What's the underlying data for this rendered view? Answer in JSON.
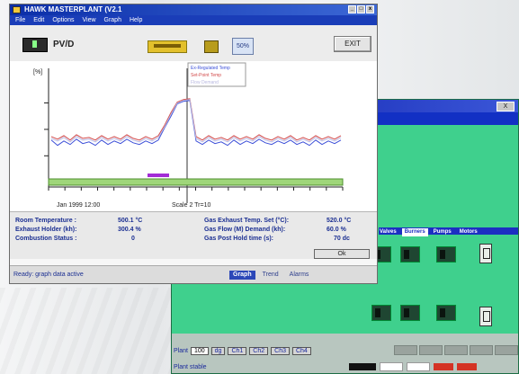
{
  "main_window": {
    "title": "HAWK MASTERPLANT (V2.1",
    "title_buttons": [
      "_",
      "□",
      "x"
    ],
    "menu": [
      "File",
      "Edit",
      "Options",
      "View",
      "Graph",
      "Help"
    ],
    "toolbar": {
      "label": "PV/D",
      "zoom_label": "50%",
      "exit_label": "EXIT"
    },
    "chart_footer": {
      "left": "Jan 1999 12:00",
      "mid": "Scale 2 Tr=10"
    },
    "info": {
      "left": [
        {
          "label": "Room Temperature  :",
          "value": "500.1 °C"
        },
        {
          "label": "Exhaust Holder (kh):",
          "value": "300.4 %"
        },
        {
          "label": "Combustion Status   :",
          "value": "0"
        }
      ],
      "right": [
        {
          "label": "Gas Exhaust Temp. Set (°C):",
          "value": "520.0 °C"
        },
        {
          "label": "Gas Flow (M) Demand  (kh):",
          "value": "60.0 %"
        },
        {
          "label": "Gas Post Hold time   (s):",
          "value": "70 dc"
        }
      ],
      "button_label": "Ok"
    },
    "status_text": "Ready: graph data active",
    "bottom_tabs": [
      {
        "label": "Graph",
        "active": true
      },
      {
        "label": "Trend",
        "active": false
      },
      {
        "label": "Alarms",
        "active": false
      }
    ]
  },
  "back_window": {
    "close_label": "X",
    "tabs": [
      {
        "label": "Valves",
        "active": false
      },
      {
        "label": "Burners",
        "active": true
      },
      {
        "label": "Pumps",
        "active": false
      },
      {
        "label": "Motors",
        "active": false
      }
    ],
    "status": {
      "prefix": "Plant",
      "number": "100",
      "unit": "dg",
      "buttons": [
        "Ch1",
        "Ch2",
        "Ch3",
        "Ch4"
      ],
      "message": "Plant stable"
    }
  },
  "chart_data": {
    "type": "line",
    "legend": [
      "Ex-Regulated Temp",
      "Set-Point Temp",
      "Flow Demand"
    ],
    "ylabel": "[%]",
    "series": [
      {
        "name": "Ex-Regulated Temp",
        "color": "#3c4fd8",
        "values": [
          41,
          35,
          40,
          36,
          42,
          37,
          39,
          35,
          41,
          36,
          40,
          37,
          42,
          38,
          36,
          40,
          37,
          41,
          55,
          68,
          82,
          85,
          86,
          40,
          36,
          41,
          37,
          39,
          35,
          41,
          36,
          40,
          37,
          42,
          38,
          36,
          40,
          37,
          41,
          36,
          39,
          35,
          41,
          36,
          40,
          37,
          41
        ]
      },
      {
        "name": "Set-Point Temp",
        "color": "#d24a4a",
        "values": [
          45,
          42,
          46,
          41,
          47,
          43,
          44,
          41,
          46,
          42,
          45,
          42,
          47,
          43,
          41,
          45,
          42,
          46,
          58,
          72,
          84,
          87,
          88,
          45,
          41,
          46,
          42,
          44,
          41,
          46,
          42,
          45,
          42,
          47,
          43,
          41,
          45,
          42,
          46,
          41,
          44,
          41,
          46,
          42,
          45,
          42,
          46
        ]
      },
      {
        "name": "Flow Demand",
        "color": "#b8b8e0",
        "values": [
          43,
          40,
          44,
          39,
          45,
          41,
          42,
          39,
          44,
          40,
          43,
          40,
          45,
          41,
          39,
          43,
          40,
          44,
          56,
          70,
          83,
          86,
          87,
          43,
          39,
          44,
          40,
          42,
          39,
          44,
          40,
          43,
          40,
          45,
          41,
          39,
          43,
          40,
          44,
          39,
          42,
          39,
          44,
          40,
          43,
          40,
          44
        ]
      }
    ],
    "ylim": [
      0,
      100
    ]
  }
}
